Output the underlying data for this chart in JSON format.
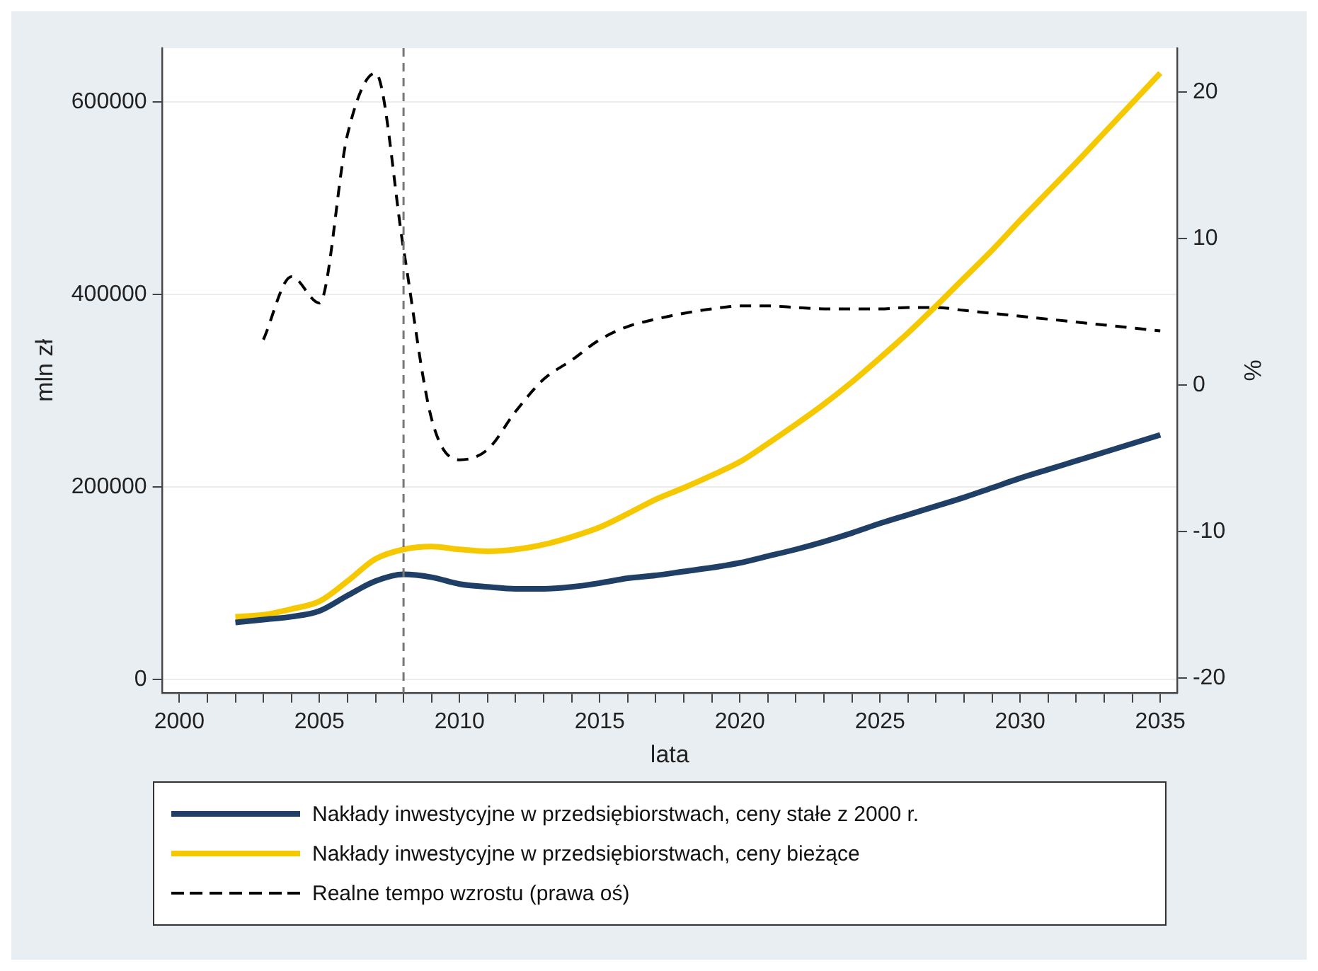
{
  "chart_data": {
    "type": "line",
    "xlabel": "lata",
    "ylabel": "mln zł",
    "y2label": "%",
    "xlim": [
      1999.4,
      2035.6
    ],
    "xticks": [
      2000,
      {
        "value": 2001,
        "label": null
      },
      {
        "value": 2002,
        "label": null
      },
      {
        "value": 2003,
        "label": null
      },
      {
        "value": 2004,
        "label": null
      },
      2005,
      {
        "value": 2006,
        "label": null
      },
      {
        "value": 2007,
        "label": null
      },
      {
        "value": 2008,
        "label": null
      },
      {
        "value": 2009,
        "label": null
      },
      2010,
      {
        "value": 2011,
        "label": null
      },
      {
        "value": 2012,
        "label": null
      },
      {
        "value": 2013,
        "label": null
      },
      {
        "value": 2014,
        "label": null
      },
      2015,
      {
        "value": 2016,
        "label": null
      },
      {
        "value": 2017,
        "label": null
      },
      {
        "value": 2018,
        "label": null
      },
      {
        "value": 2019,
        "label": null
      },
      2020,
      {
        "value": 2021,
        "label": null
      },
      {
        "value": 2022,
        "label": null
      },
      {
        "value": 2023,
        "label": null
      },
      {
        "value": 2024,
        "label": null
      },
      2025,
      {
        "value": 2026,
        "label": null
      },
      {
        "value": 2027,
        "label": null
      },
      {
        "value": 2028,
        "label": null
      },
      {
        "value": 2029,
        "label": null
      },
      2030,
      {
        "value": 2031,
        "label": null
      },
      {
        "value": 2032,
        "label": null
      },
      {
        "value": 2033,
        "label": null
      },
      {
        "value": 2034,
        "label": null
      },
      2035
    ],
    "ylim": [
      -14000,
      656000
    ],
    "yticks": [
      0,
      200000,
      400000,
      600000
    ],
    "y2lim": [
      -21,
      23
    ],
    "y2ticks": [
      -20,
      -10,
      0,
      10,
      20
    ],
    "grid": "y",
    "legend": "bottom",
    "marker": "none",
    "ref_lines": [
      {
        "axis": "x",
        "value": 2008,
        "color": "#777777",
        "line_style": "dashed"
      }
    ],
    "series": [
      {
        "name": "Nakłady inwestycyjne w przedsiębiorstwach, ceny stałe z 2000 r.",
        "color": "#1f3f66",
        "line_style": "solid",
        "x": [
          2002,
          2003,
          2004,
          2005,
          2006,
          2007,
          2008,
          2009,
          2010,
          2011,
          2012,
          2013,
          2014,
          2015,
          2016,
          2017,
          2018,
          2019,
          2020,
          2021,
          2022,
          2023,
          2024,
          2025,
          2026,
          2027,
          2028,
          2029,
          2030,
          2031,
          2032,
          2033,
          2034,
          2035
        ],
        "values": [
          59000,
          62000,
          65000,
          71000,
          87000,
          102000,
          109000,
          106000,
          99000,
          96000,
          94000,
          94000,
          96000,
          100000,
          105000,
          108000,
          112000,
          116000,
          121000,
          128000,
          135000,
          143000,
          152000,
          162000,
          171000,
          180000,
          189000,
          199000,
          209000,
          218000,
          227000,
          236000,
          245000,
          254000
        ]
      },
      {
        "name": "Nakłady inwestycyjne w przedsiębiorstwach, ceny bieżące",
        "color": "#f5c800",
        "line_style": "solid",
        "x": [
          2002,
          2003,
          2004,
          2005,
          2006,
          2007,
          2008,
          2009,
          2010,
          2011,
          2012,
          2013,
          2014,
          2015,
          2016,
          2017,
          2018,
          2019,
          2020,
          2021,
          2022,
          2023,
          2024,
          2025,
          2026,
          2027,
          2028,
          2029,
          2030,
          2031,
          2032,
          2033,
          2034,
          2035
        ],
        "values": [
          65000,
          67000,
          73000,
          81000,
          102000,
          125000,
          135000,
          138000,
          135000,
          133000,
          135000,
          140000,
          148000,
          158000,
          172000,
          187000,
          199000,
          212000,
          226000,
          245000,
          265000,
          286000,
          309000,
          334000,
          360000,
          388000,
          417000,
          446000,
          477000,
          507000,
          537000,
          568000,
          599000,
          630000
        ]
      },
      {
        "name": "Realne tempo wzrostu (prawa oś)",
        "color": "#000000",
        "line_style": "dashed",
        "axis": "y2",
        "x": [
          2003,
          2004,
          2005,
          2006,
          2007,
          2008,
          2009,
          2010,
          2011,
          2012,
          2013,
          2014,
          2015,
          2016,
          2017,
          2018,
          2019,
          2020,
          2021,
          2022,
          2023,
          2024,
          2025,
          2026,
          2027,
          2028,
          2029,
          2030,
          2031,
          2032,
          2033,
          2034,
          2035
        ],
        "values": [
          3.1,
          7.4,
          5.6,
          17.1,
          21.3,
          9.3,
          -2.3,
          -5.1,
          -4.4,
          -1.8,
          0.4,
          1.7,
          3.1,
          4.0,
          4.5,
          4.9,
          5.2,
          5.4,
          5.4,
          5.3,
          5.2,
          5.2,
          5.2,
          5.3,
          5.3,
          5.1,
          4.9,
          4.7,
          4.5,
          4.3,
          4.1,
          3.9,
          3.7
        ]
      }
    ]
  }
}
